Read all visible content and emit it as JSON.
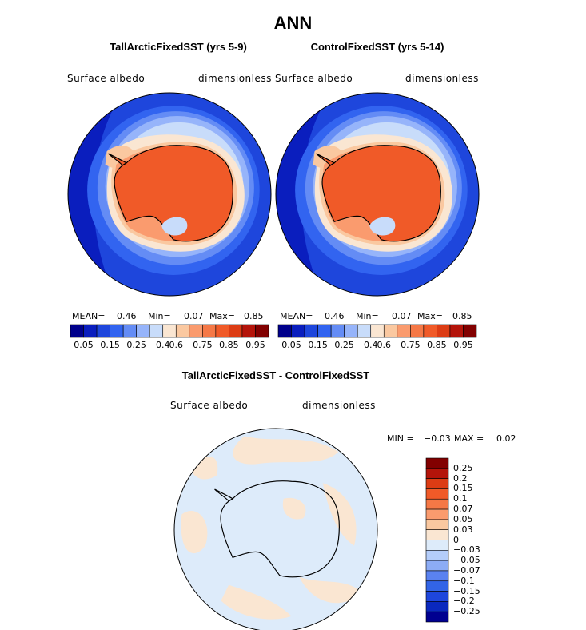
{
  "title": "ANN",
  "panels": [
    {
      "id": "left",
      "case": "TallArcticFixedSST (yrs 5-9)",
      "variable": "Surface albedo",
      "units": "dimensionless",
      "stats": {
        "mean_label": "MEAN=",
        "mean": "0.46",
        "min_label": "Min=",
        "min": "0.07",
        "max_label": "Max=",
        "max": "0.85"
      }
    },
    {
      "id": "right",
      "case": "ControlFixedSST (yrs 5-14)",
      "variable": "Surface albedo",
      "units": "dimensionless",
      "stats": {
        "mean_label": "MEAN=",
        "mean": "0.46",
        "min_label": "Min=",
        "min": "0.07",
        "max_label": "Max=",
        "max": "0.85"
      }
    }
  ],
  "horizontal_colorbar": {
    "colors": [
      "#00008b",
      "#0a1ebe",
      "#1e46dc",
      "#3264f0",
      "#648cf5",
      "#96b4fa",
      "#c8dcfa",
      "#fae6d2",
      "#fac8a0",
      "#fa9b6e",
      "#f57846",
      "#f05a28",
      "#dc3c14",
      "#b4140a",
      "#820000"
    ],
    "tick_labels": [
      "0.05",
      "0.15",
      "0.25",
      "0.4",
      "0.6",
      "0.75",
      "0.85",
      "0.95"
    ]
  },
  "difference": {
    "title": "TallArcticFixedSST - ControlFixedSST",
    "variable": "Surface albedo",
    "units": "dimensionless",
    "stats": {
      "min_label": "MIN =",
      "min": "−0.03",
      "max_label": "MAX =",
      "max": "0.02"
    },
    "colorbar": {
      "colors": [
        "#820000",
        "#b4140a",
        "#dc3c14",
        "#f05a28",
        "#f57846",
        "#fa9b6e",
        "#fac8a0",
        "#fae6d2",
        "#ddebfa",
        "#b4cdfa",
        "#8cacf5",
        "#5a82f0",
        "#3264e6",
        "#1e46dc",
        "#0a28be",
        "#000090"
      ],
      "tick_labels": [
        "0.25",
        "0.2",
        "0.15",
        "0.1",
        "0.07",
        "0.05",
        "0.03",
        "0",
        "−0.03",
        "−0.05",
        "−0.07",
        "−0.1",
        "−0.15",
        "−0.2",
        "−0.25"
      ]
    }
  }
}
